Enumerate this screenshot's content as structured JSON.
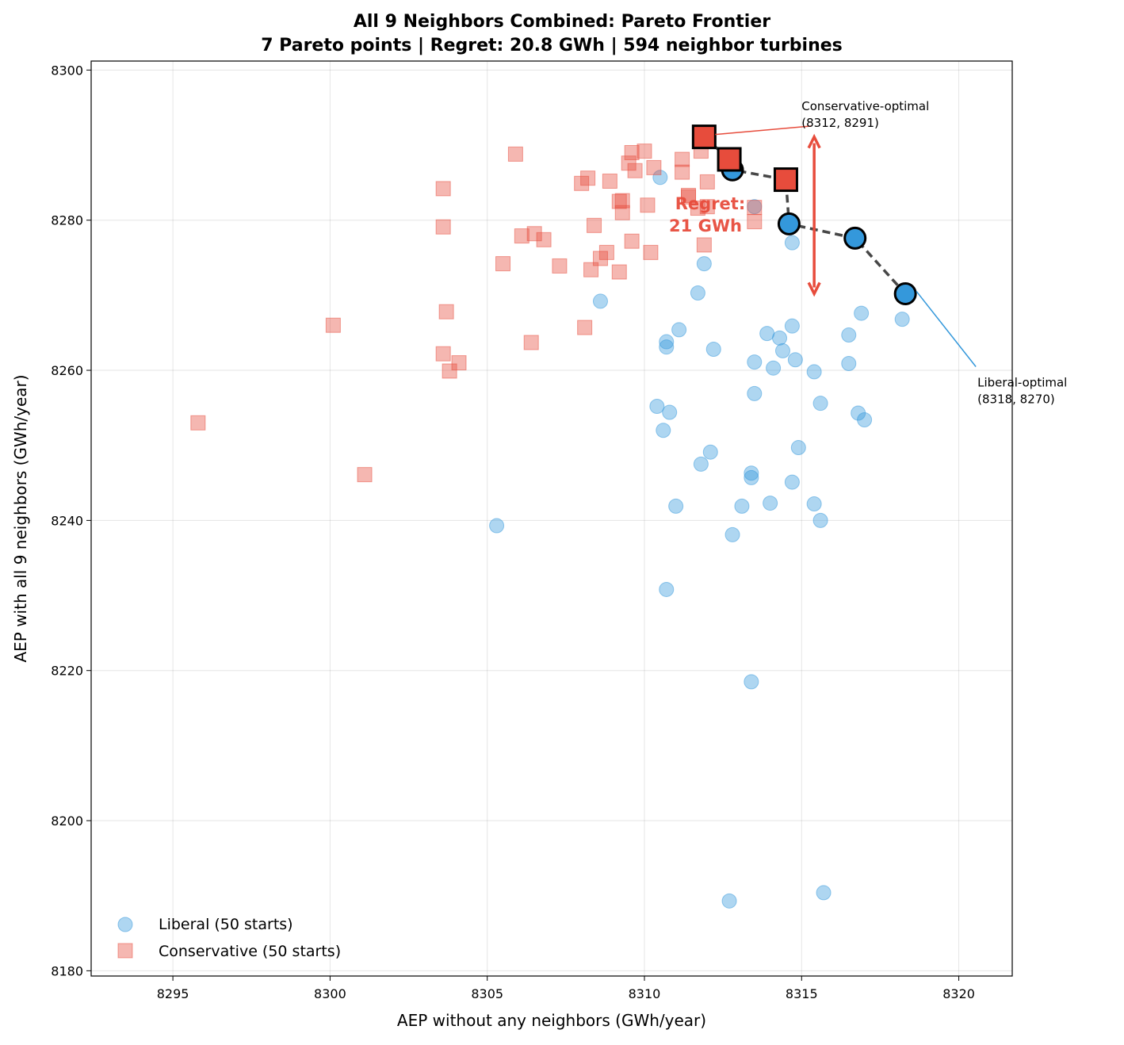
{
  "chart_data": {
    "type": "scatter",
    "title": "All 9 Neighbors Combined: Pareto Frontier",
    "subtitle": "7 Pareto points | Regret: 20.8 GWh | 594 neighbor turbines",
    "xlabel": "AEP without any neighbors (GWh/year)",
    "ylabel": "AEP with all 9 neighbors (GWh/year)",
    "xlim": [
      8292.4,
      8321.7
    ],
    "ylim": [
      8179.3,
      8301.2
    ],
    "xticks": [
      8295,
      8300,
      8305,
      8310,
      8315,
      8320
    ],
    "yticks": [
      8180,
      8200,
      8220,
      8240,
      8260,
      8280,
      8300
    ],
    "grid": true,
    "legend_position": "bottom-left",
    "colors": {
      "liberal": "#3498db",
      "conservative": "#e74c3c",
      "frontier": "#333333"
    },
    "series": [
      {
        "name": "Liberal (50 starts)",
        "marker": "circle",
        "points": [
          [
            8310.5,
            8285.7
          ],
          [
            8313.5,
            8281.8
          ],
          [
            8314.7,
            8277.0
          ],
          [
            8311.9,
            8274.2
          ],
          [
            8308.6,
            8269.2
          ],
          [
            8311.7,
            8270.3
          ],
          [
            8316.9,
            8267.6
          ],
          [
            8318.2,
            8266.8
          ],
          [
            8311.1,
            8265.4
          ],
          [
            8310.7,
            8263.8
          ],
          [
            8310.7,
            8263.1
          ],
          [
            8313.9,
            8264.9
          ],
          [
            8314.7,
            8265.9
          ],
          [
            8314.3,
            8264.3
          ],
          [
            8314.4,
            8262.6
          ],
          [
            8316.5,
            8264.7
          ],
          [
            8312.2,
            8262.8
          ],
          [
            8313.5,
            8261.1
          ],
          [
            8314.8,
            8261.4
          ],
          [
            8314.1,
            8260.3
          ],
          [
            8315.4,
            8259.8
          ],
          [
            8316.5,
            8260.9
          ],
          [
            8313.5,
            8256.9
          ],
          [
            8315.6,
            8255.6
          ],
          [
            8310.4,
            8255.2
          ],
          [
            8310.8,
            8254.4
          ],
          [
            8316.8,
            8254.3
          ],
          [
            8317.0,
            8253.4
          ],
          [
            8310.6,
            8252.0
          ],
          [
            8314.9,
            8249.7
          ],
          [
            8312.1,
            8249.1
          ],
          [
            8311.8,
            8247.5
          ],
          [
            8313.4,
            8246.3
          ],
          [
            8313.4,
            8245.7
          ],
          [
            8314.7,
            8245.1
          ],
          [
            8311.0,
            8241.9
          ],
          [
            8313.1,
            8241.9
          ],
          [
            8314.0,
            8242.3
          ],
          [
            8315.4,
            8242.2
          ],
          [
            8315.6,
            8240.0
          ],
          [
            8305.3,
            8239.3
          ],
          [
            8312.8,
            8238.1
          ],
          [
            8310.7,
            8230.8
          ],
          [
            8313.4,
            8218.5
          ],
          [
            8312.7,
            8189.3
          ],
          [
            8315.7,
            8190.4
          ],
          [
            8312.8,
            8286.7
          ],
          [
            8314.6,
            8279.5
          ],
          [
            8316.7,
            8277.6
          ],
          [
            8318.3,
            8270.2
          ]
        ],
        "pareto": [
          [
            8312.8,
            8286.7
          ],
          [
            8314.6,
            8279.5
          ],
          [
            8316.7,
            8277.6
          ],
          [
            8318.3,
            8270.2
          ]
        ]
      },
      {
        "name": "Conservative (50 starts)",
        "marker": "square",
        "points": [
          [
            8305.9,
            8288.8
          ],
          [
            8303.6,
            8284.2
          ],
          [
            8303.6,
            8279.1
          ],
          [
            8305.5,
            8274.2
          ],
          [
            8303.7,
            8267.8
          ],
          [
            8300.1,
            8266.0
          ],
          [
            8303.6,
            8262.2
          ],
          [
            8304.1,
            8261.0
          ],
          [
            8303.8,
            8259.9
          ],
          [
            8295.8,
            8253.0
          ],
          [
            8301.1,
            8246.1
          ],
          [
            8306.4,
            8263.7
          ],
          [
            8308.1,
            8265.7
          ],
          [
            8306.1,
            8277.9
          ],
          [
            8306.5,
            8278.2
          ],
          [
            8306.8,
            8277.4
          ],
          [
            8307.3,
            8273.9
          ],
          [
            8308.3,
            8273.4
          ],
          [
            8308.6,
            8274.9
          ],
          [
            8308.8,
            8275.7
          ],
          [
            8309.2,
            8273.1
          ],
          [
            8308.4,
            8279.3
          ],
          [
            8309.3,
            8281.0
          ],
          [
            8309.2,
            8282.5
          ],
          [
            8309.3,
            8282.6
          ],
          [
            8309.6,
            8277.2
          ],
          [
            8310.2,
            8275.7
          ],
          [
            8310.1,
            8282.0
          ],
          [
            8308.2,
            8285.6
          ],
          [
            8308.0,
            8284.9
          ],
          [
            8308.9,
            8285.2
          ],
          [
            8309.5,
            8287.6
          ],
          [
            8309.6,
            8289.0
          ],
          [
            8309.7,
            8286.6
          ],
          [
            8310.0,
            8289.2
          ],
          [
            8310.3,
            8287.0
          ],
          [
            8311.2,
            8288.1
          ],
          [
            8311.2,
            8286.4
          ],
          [
            8311.8,
            8289.2
          ],
          [
            8312.0,
            8285.1
          ],
          [
            8311.4,
            8283.1
          ],
          [
            8311.4,
            8283.3
          ],
          [
            8311.7,
            8281.6
          ],
          [
            8312.0,
            8281.8
          ],
          [
            8311.9,
            8276.7
          ],
          [
            8313.5,
            8281.7
          ],
          [
            8313.5,
            8279.8
          ],
          [
            8311.9,
            8291.1
          ],
          [
            8312.7,
            8288.1
          ],
          [
            8314.5,
            8285.4
          ]
        ],
        "pareto": [
          [
            8311.9,
            8291.1
          ],
          [
            8312.7,
            8288.1
          ],
          [
            8314.5,
            8285.4
          ]
        ]
      }
    ],
    "frontier": [
      [
        8311.9,
        8291.1
      ],
      [
        8312.7,
        8288.1
      ],
      [
        8312.8,
        8286.7
      ],
      [
        8314.5,
        8285.4
      ],
      [
        8314.6,
        8279.5
      ],
      [
        8316.7,
        8277.6
      ],
      [
        8318.3,
        8270.2
      ]
    ],
    "regret": {
      "x": 8315.4,
      "y_top": 8291.1,
      "y_bottom": 8270.2,
      "label_line1": "Regret:",
      "label_line2": "21 GWh"
    },
    "annotations": [
      {
        "line1": "Conservative-optimal",
        "line2": "(8312, 8291)",
        "point": [
          8311.9,
          8291.1
        ],
        "text_at": [
          8315.0,
          8295.5
        ],
        "color": "#e74c3c"
      },
      {
        "line1": "Liberal-optimal",
        "line2": "(8318, 8270)",
        "point": [
          8318.3,
          8270.2
        ],
        "text_at": [
          8321.3,
          8259.0
        ],
        "color": "#3498db"
      }
    ]
  }
}
